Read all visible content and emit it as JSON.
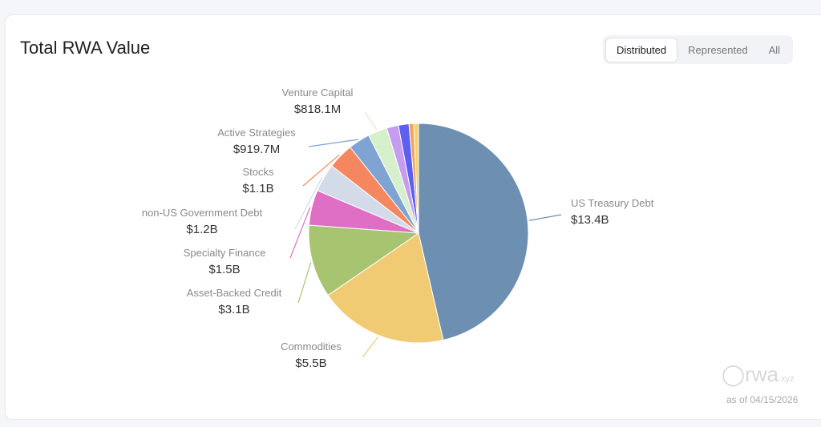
{
  "chart_data": {
    "type": "pie",
    "title": "Total RWA Value",
    "categories": [
      "US Treasury Debt",
      "Commodities",
      "Asset-Backed Credit",
      "Specialty Finance",
      "non-US Government Debt",
      "Stocks",
      "Active Strategies",
      "Venture Capital",
      null,
      null,
      null,
      null
    ],
    "values": [
      13400000000,
      5500000000,
      3100000000,
      1500000000,
      1200000000,
      1100000000,
      919700000,
      818100000,
      500000000,
      450000000,
      200000000,
      200000000
    ],
    "value_labels": [
      "$13.4B",
      "$5.5B",
      "$3.1B",
      "$1.5B",
      "$1.2B",
      "$1.1B",
      "$919.7M",
      "$818.1M",
      null,
      null,
      null,
      null
    ],
    "colors": [
      "#6d8fb2",
      "#f1cb74",
      "#a7c471",
      "#df6fc4",
      "#d3dbe9",
      "#f4875f",
      "#7fa3d2",
      "#d6f0cb",
      "#c69cf0",
      "#5d60ee",
      "#f0a55a",
      "#f5d36a"
    ]
  },
  "toggle": [
    "Distributed",
    "Represented",
    "All"
  ],
  "brand": "rwa",
  "brand_suffix": ".xyz",
  "as_of": "as of 04/15/2026"
}
